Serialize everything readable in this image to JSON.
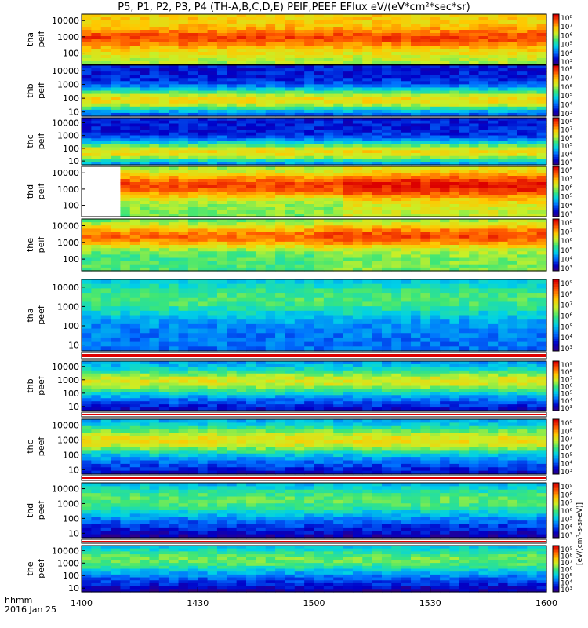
{
  "title": "P5, P1, P2, P3, P4 (TH-A,B,C,D,E) PEIF,PEEF EFlux eV/(eV*cm²*sec*sr)",
  "time_axis": {
    "label_line1": "hhmm",
    "label_line2": "2016 Jan 25",
    "ticks": [
      "1400",
      "1430",
      "1500",
      "1530",
      "1600"
    ],
    "start_hhmm": "1400",
    "end_hhmm": "1600"
  },
  "colorbar_label": "[eV/(cm²-s-sr-eV)]",
  "chart_data": {
    "type": "heatmap",
    "x_range_minutes": [
      0,
      120
    ],
    "y_scale": "log",
    "panels": [
      {
        "probe": "tha",
        "species": "peif",
        "label_top": "tha",
        "label_bottom": "peif",
        "yticks": [
          "10000",
          "1000",
          "100"
        ],
        "ylim": [
          20,
          25000
        ],
        "cb_ticks": [
          "10⁸",
          "10⁷",
          "10⁶",
          "10⁵",
          "10⁴",
          "10³"
        ]
      },
      {
        "probe": "thb",
        "species": "peif",
        "label_top": "thb",
        "label_bottom": "peif",
        "yticks": [
          "10000",
          "1000",
          "100",
          "10"
        ],
        "ylim": [
          5,
          25000
        ],
        "cb_ticks": [
          "10⁸",
          "10⁷",
          "10⁶",
          "10⁵",
          "10⁴",
          "10³"
        ]
      },
      {
        "probe": "thc",
        "species": "peif",
        "label_top": "thc",
        "label_bottom": "peif",
        "yticks": [
          "10000",
          "1000",
          "100",
          "10"
        ],
        "ylim": [
          5,
          25000
        ],
        "cb_ticks": [
          "10⁸",
          "10⁷",
          "10⁶",
          "10⁵",
          "10⁴",
          "10³"
        ]
      },
      {
        "probe": "thd",
        "species": "peif",
        "label_top": "thd",
        "label_bottom": "peif",
        "yticks": [
          "10000",
          "1000",
          "100"
        ],
        "ylim": [
          20,
          25000
        ],
        "cb_ticks": [
          "10⁸",
          "10⁷",
          "10⁶",
          "10⁵",
          "10⁴",
          "10³"
        ]
      },
      {
        "probe": "the",
        "species": "peif",
        "label_top": "the",
        "label_bottom": "peif",
        "yticks": [
          "10000",
          "1000",
          "100"
        ],
        "ylim": [
          20,
          25000
        ],
        "cb_ticks": [
          "10⁸",
          "10⁷",
          "10⁶",
          "10⁵",
          "10⁴",
          "10³"
        ]
      },
      {
        "probe": "tha",
        "species": "peef",
        "label_top": "tha",
        "label_bottom": "peef",
        "yticks": [
          "10000",
          "1000",
          "100",
          "10"
        ],
        "ylim": [
          5,
          25000
        ],
        "cb_ticks": [
          "10⁹",
          "10⁸",
          "10⁷",
          "10⁶",
          "10⁵",
          "10⁴",
          "10³"
        ]
      },
      {
        "probe": "thb",
        "species": "peef",
        "label_top": "thb",
        "label_bottom": "peef",
        "yticks": [
          "10000",
          "1000",
          "100",
          "10"
        ],
        "ylim": [
          5,
          25000
        ],
        "cb_ticks": [
          "10⁹",
          "10⁸",
          "10⁷",
          "10⁶",
          "10⁵",
          "10⁴",
          "10³"
        ]
      },
      {
        "probe": "thc",
        "species": "peef",
        "label_top": "thc",
        "label_bottom": "peef",
        "yticks": [
          "10000",
          "1000",
          "100",
          "10"
        ],
        "ylim": [
          5,
          25000
        ],
        "cb_ticks": [
          "10⁹",
          "10⁸",
          "10⁷",
          "10⁶",
          "10⁵",
          "10⁴",
          "10³"
        ]
      },
      {
        "probe": "thd",
        "species": "peef",
        "label_top": "thd",
        "label_bottom": "peef",
        "yticks": [
          "10000",
          "1000",
          "100",
          "10"
        ],
        "ylim": [
          5,
          25000
        ],
        "cb_ticks": [
          "10⁹",
          "10⁸",
          "10⁷",
          "10⁶",
          "10⁵",
          "10⁴",
          "10³"
        ]
      },
      {
        "probe": "the",
        "species": "peef",
        "label_top": "the",
        "label_bottom": "peef",
        "yticks": [
          "10000",
          "1000",
          "100",
          "10"
        ],
        "ylim": [
          5,
          25000
        ],
        "cb_ticks": [
          "10⁹",
          "10⁸",
          "10⁷",
          "10⁶",
          "10⁵",
          "10⁴",
          "10³"
        ]
      }
    ]
  }
}
